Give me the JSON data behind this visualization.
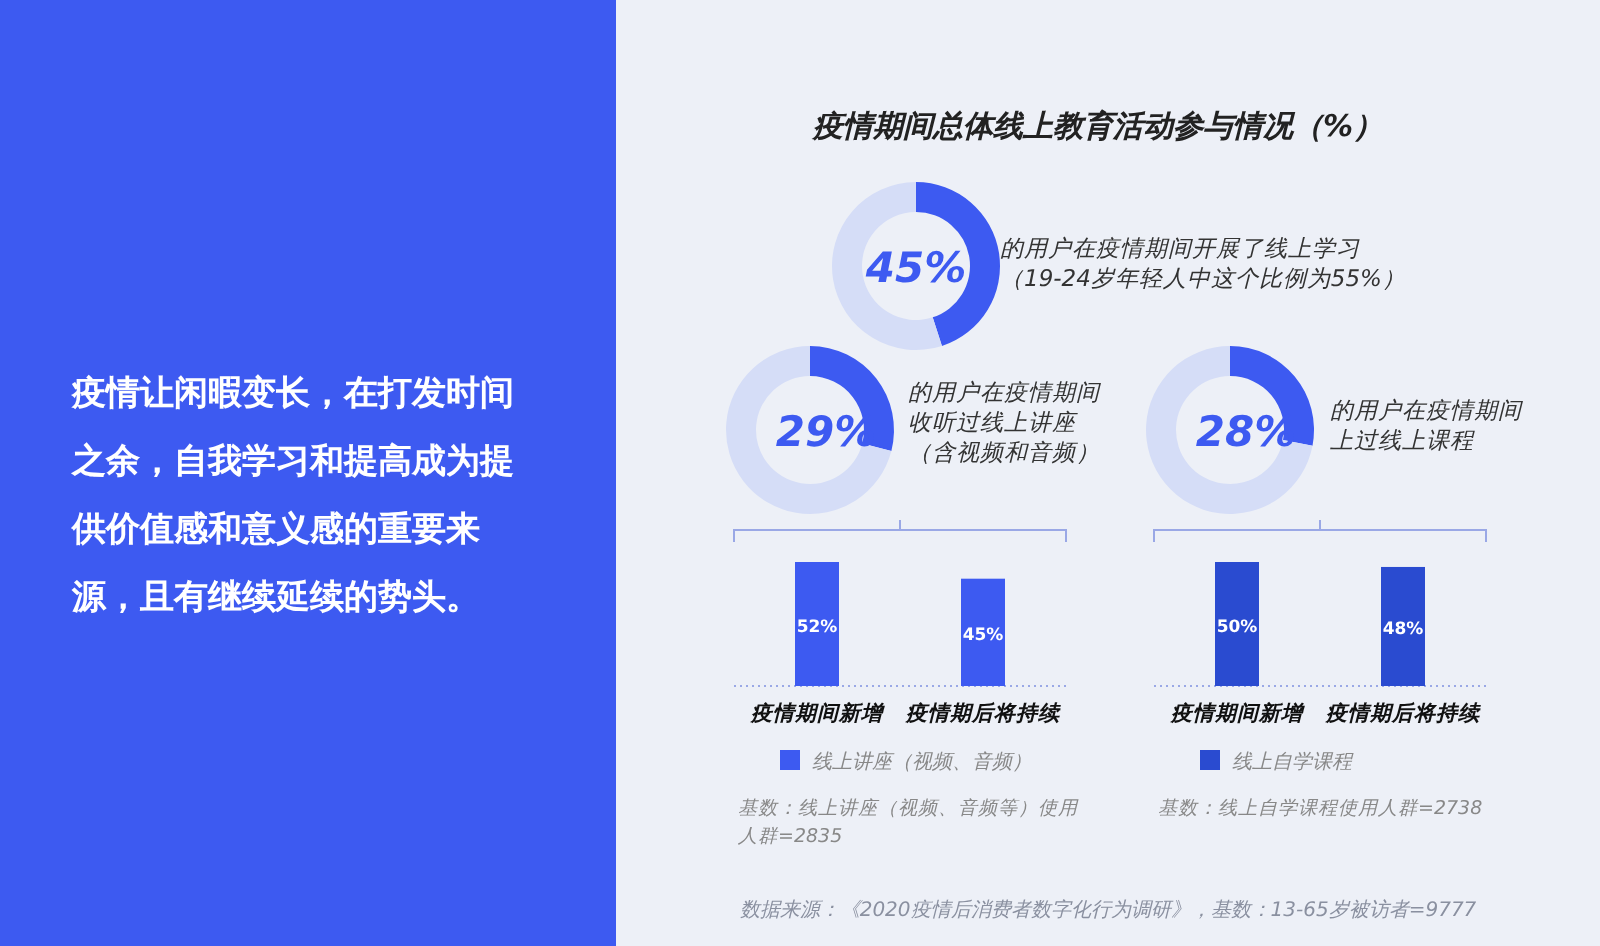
{
  "chart_data": [
    {
      "type": "other",
      "annotations": [
        "疫情让闲暇变长，在打发时间之余，自我学习和提高成为提供价值感和意义感的重要来源，且有继续延续的势头。"
      ]
    },
    {
      "type": "donut",
      "title": "疫情期间总体线上教育活动参与情况（%）",
      "categories": [
        null,
        null
      ],
      "values": [
        45,
        55
      ],
      "colors": [
        "#3d5af1",
        "#d5ddf7"
      ],
      "value_labels": [
        "45%",
        null
      ],
      "annotations": [
        "的用户在疫情期间开展了线上学习",
        "（19-24岁年轻人中这个比例为55%）"
      ]
    },
    {
      "type": "donut",
      "categories": [
        null,
        null
      ],
      "values": [
        29,
        71
      ],
      "colors": [
        "#3d5af1",
        "#d5ddf7"
      ],
      "value_labels": [
        "29%",
        null
      ],
      "annotations": [
        "的用户在疫情期间",
        "收听过线上讲座",
        "（含视频和音频）"
      ]
    },
    {
      "type": "donut",
      "categories": [
        null,
        null
      ],
      "values": [
        28,
        72
      ],
      "colors": [
        "#3d5af1",
        "#d5ddf7"
      ],
      "value_labels": [
        "28%",
        null
      ],
      "annotations": [
        "的用户在疫情期间",
        "上过线上课程"
      ]
    },
    {
      "type": "bar",
      "categories": [
        "疫情期间新增",
        "疫情期后将持续"
      ],
      "legend": "bottom",
      "series": [
        {
          "name": "线上讲座（视频、音频）",
          "color": "#3d5af1",
          "values": [
            52,
            45
          ],
          "value_labels": [
            "52%",
            "45%"
          ]
        }
      ],
      "annotations": [
        "基数：线上讲座（视频、音频等）使用人群=2835"
      ]
    },
    {
      "type": "bar",
      "categories": [
        "疫情期间新增",
        "疫情期后将持续"
      ],
      "legend": "bottom",
      "series": [
        {
          "name": "线上自学课程",
          "color": "#2a4bd0",
          "values": [
            50,
            48
          ],
          "value_labels": [
            "50%",
            "48%"
          ]
        }
      ],
      "annotations": [
        "基数：线上自学课程使用人群=2738"
      ]
    },
    {
      "type": "other",
      "annotations": [
        "数据来源：《2020疫情后消费者数字化行为调研》，基数：13-65岁被访者=9777"
      ]
    }
  ]
}
